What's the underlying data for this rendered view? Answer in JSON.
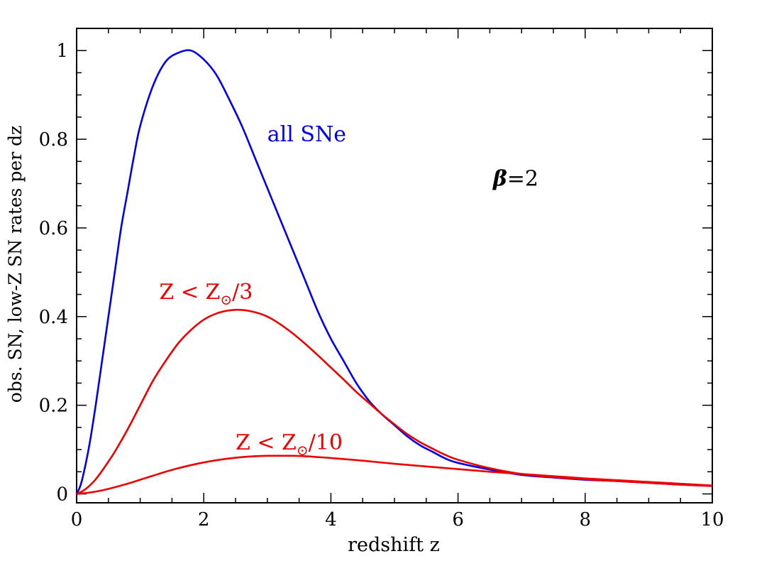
{
  "chart_data": {
    "type": "line",
    "title": "",
    "xlabel": "redshift z",
    "ylabel": "obs. SN, low-Z SN rates per dz",
    "xlim": [
      0,
      10
    ],
    "ylim": [
      -0.02,
      1.05
    ],
    "xticks": [
      0,
      2,
      4,
      6,
      8,
      10
    ],
    "yticks": [
      0,
      0.2,
      0.4,
      0.6,
      0.8,
      1
    ],
    "xtick_labels": [
      "0",
      "2",
      "4",
      "6",
      "8",
      "10"
    ],
    "ytick_labels": [
      "0",
      "0.2",
      "0.4",
      "0.6",
      "0.8",
      "1"
    ],
    "x_minor_step": 0.5,
    "y_minor_step": 0.05,
    "grid": false,
    "legend": "none",
    "series": [
      {
        "name": "all SNe",
        "color": "#0000ee",
        "x": [
          0,
          0.05,
          0.1,
          0.2,
          0.3,
          0.4,
          0.5,
          0.6,
          0.7,
          0.8,
          0.9,
          1.0,
          1.2,
          1.4,
          1.6,
          1.8,
          2.0,
          2.2,
          2.4,
          2.6,
          2.8,
          3.0,
          3.2,
          3.4,
          3.6,
          3.8,
          4.0,
          4.2,
          4.4,
          4.6,
          4.8,
          5.0,
          5.2,
          5.4,
          5.6,
          5.8,
          6.0,
          6.5,
          7.0,
          7.5,
          8.0,
          8.5,
          9.0,
          9.5,
          10.0
        ],
        "y": [
          0.0,
          0.015,
          0.04,
          0.11,
          0.2,
          0.3,
          0.4,
          0.5,
          0.6,
          0.68,
          0.76,
          0.83,
          0.92,
          0.975,
          0.995,
          1.0,
          0.98,
          0.945,
          0.89,
          0.83,
          0.76,
          0.69,
          0.62,
          0.55,
          0.48,
          0.41,
          0.35,
          0.3,
          0.25,
          0.21,
          0.18,
          0.155,
          0.13,
          0.11,
          0.095,
          0.08,
          0.07,
          0.055,
          0.043,
          0.037,
          0.032,
          0.029,
          0.025,
          0.021,
          0.018
        ]
      },
      {
        "name": "Z < Z⊙/3",
        "color": "#ee0000",
        "x": [
          0,
          0.1,
          0.2,
          0.3,
          0.4,
          0.5,
          0.6,
          0.8,
          1.0,
          1.2,
          1.4,
          1.6,
          1.8,
          2.0,
          2.2,
          2.4,
          2.6,
          2.8,
          3.0,
          3.2,
          3.4,
          3.6,
          3.8,
          4.0,
          4.2,
          4.4,
          4.6,
          4.8,
          5.0,
          5.2,
          5.4,
          5.6,
          5.8,
          6.0,
          6.5,
          7.0,
          7.5,
          8.0,
          8.5,
          9.0,
          9.5,
          10.0
        ],
        "y": [
          0.0,
          0.007,
          0.018,
          0.033,
          0.052,
          0.073,
          0.095,
          0.145,
          0.2,
          0.255,
          0.3,
          0.34,
          0.37,
          0.393,
          0.407,
          0.414,
          0.415,
          0.41,
          0.4,
          0.383,
          0.362,
          0.338,
          0.312,
          0.285,
          0.258,
          0.23,
          0.205,
          0.18,
          0.157,
          0.135,
          0.117,
          0.102,
          0.088,
          0.077,
          0.058,
          0.045,
          0.038,
          0.033,
          0.029,
          0.025,
          0.021,
          0.018
        ]
      },
      {
        "name": "Z < Z⊙/10",
        "color": "#ee0000",
        "x": [
          0,
          0.2,
          0.4,
          0.6,
          0.8,
          1.0,
          1.2,
          1.4,
          1.6,
          1.8,
          2.0,
          2.2,
          2.4,
          2.6,
          2.8,
          3.0,
          3.2,
          3.4,
          3.6,
          3.8,
          4.0,
          4.5,
          5.0,
          5.5,
          6.0,
          6.5,
          7.0,
          7.5,
          8.0,
          8.5,
          9.0,
          9.5,
          10.0
        ],
        "y": [
          0.0,
          0.003,
          0.008,
          0.015,
          0.023,
          0.032,
          0.041,
          0.05,
          0.058,
          0.065,
          0.071,
          0.076,
          0.08,
          0.083,
          0.085,
          0.086,
          0.086,
          0.086,
          0.085,
          0.083,
          0.081,
          0.075,
          0.068,
          0.062,
          0.056,
          0.05,
          0.045,
          0.04,
          0.035,
          0.031,
          0.027,
          0.023,
          0.019
        ]
      }
    ],
    "annotations": [
      {
        "id": "all",
        "text": "all SNe",
        "color": "#0000ee",
        "x": 3.0,
        "y": 0.795
      },
      {
        "id": "third",
        "main": "Z < Z",
        "sub": "⊙",
        "tail": "/3",
        "color": "#ee0000",
        "x": 1.3,
        "y": 0.44
      },
      {
        "id": "tenth",
        "main": "Z < Z",
        "sub": "⊙",
        "tail": "/10",
        "color": "#ee0000",
        "x": 2.5,
        "y": 0.1
      },
      {
        "id": "beta",
        "sym": "β",
        "tail": "=2",
        "color": "#000000",
        "x": 6.55,
        "y": 0.695
      }
    ]
  }
}
